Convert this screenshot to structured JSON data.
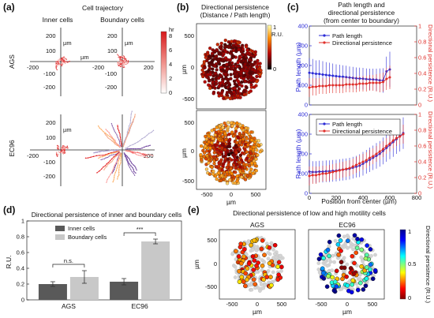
{
  "colors": {
    "blue": "#2b2bd6",
    "red": "#e0302b",
    "dark_bar": "#595959",
    "light_bar": "#c8c8c8"
  },
  "panels": {
    "a": "(a)",
    "b": "(b)",
    "c": "(c)",
    "d": "(d)",
    "e": "(e)"
  },
  "a": {
    "title": "Cell trajectory",
    "col_inner": "Inner cells",
    "col_boundary": "Boundary cells",
    "row_ags": "AGS",
    "row_ec96": "EC96",
    "unit": "µm",
    "ticks": [
      "200",
      "100",
      "-100",
      "-200",
      "-200",
      "200"
    ],
    "colorbar_unit": "hr",
    "colorbar_ticks": [
      "8",
      "6",
      "4",
      "2",
      "0"
    ]
  },
  "b": {
    "title_line1": "Directional persistence",
    "title_line2": "(Distance / Path length)",
    "colorbar_ticks": [
      "1",
      "0"
    ],
    "colorbar_unit": "R.U.",
    "ylabel": "µm",
    "xlabel": "µm",
    "yticks": [
      "500",
      "0",
      "-500"
    ],
    "xticks": [
      "-500",
      "0",
      "500"
    ]
  },
  "c": {
    "title_line1": "Path length and",
    "title_line2": "directional persistence",
    "title_line3": "(from center to boundary)",
    "ylabel_left": "Path length (µm)",
    "ylabel_right": "Directional persistence (R.U.)",
    "xlabel": "Position from center (µm)",
    "legend_path": "Path length",
    "legend_dir": "Directional persistence",
    "left_ticks": [
      "400",
      "300",
      "200",
      "100",
      "0"
    ],
    "right_ticks": [
      "1",
      "0.8",
      "0.6",
      "0.4",
      "0.2",
      "0"
    ],
    "xticks": [
      "0",
      "200",
      "400",
      "600",
      "800"
    ]
  },
  "d": {
    "title": "Directional persistence of inner and boundary cells",
    "ylabel": "R.U.",
    "legend_inner": "Inner cells",
    "legend_boundary": "Boundary cells",
    "sig_ns": "n.s.",
    "sig_star": "***",
    "yticks": [
      "1",
      "0.8",
      "0.6",
      "0.4",
      "0.2",
      "0"
    ]
  },
  "e": {
    "title": "Directional persistence of low and high motility cells",
    "sub_ags": "AGS",
    "sub_ec96": "EC96",
    "ylabel": "µm",
    "xlabel": "µm",
    "yticks": [
      "500",
      "0",
      "-500"
    ],
    "xticks": [
      "-500",
      "0",
      "500"
    ],
    "colorbar_label": "Directional persistence (R.U.)",
    "colorbar_ticks": [
      "1",
      "0.5",
      "0"
    ]
  },
  "chart_data": [
    {
      "type": "line",
      "panel": "c-top (AGS)",
      "xlabel": "Position from center (µm)",
      "x": [
        0,
        25,
        50,
        75,
        100,
        125,
        150,
        175,
        200,
        225,
        250,
        275,
        300,
        325,
        350,
        375,
        400,
        425,
        450,
        475,
        500,
        525,
        550,
        575,
        600
      ],
      "series": [
        {
          "name": "Path length",
          "axis": "left",
          "values": [
            163,
            161,
            158,
            157,
            154,
            152,
            150,
            148,
            146,
            144,
            143,
            141,
            139,
            137,
            135,
            134,
            133,
            131,
            130,
            129,
            128,
            125,
            124,
            170,
            180
          ],
          "errors": [
            75,
            72,
            68,
            70,
            68,
            65,
            64,
            62,
            60,
            60,
            58,
            58,
            56,
            56,
            55,
            55,
            55,
            54,
            54,
            55,
            56,
            60,
            62,
            75,
            90
          ]
        },
        {
          "name": "Directional persistence",
          "axis": "right",
          "values": [
            0.22,
            0.23,
            0.23,
            0.24,
            0.24,
            0.24,
            0.25,
            0.25,
            0.25,
            0.25,
            0.25,
            0.26,
            0.26,
            0.26,
            0.26,
            0.27,
            0.27,
            0.27,
            0.28,
            0.28,
            0.28,
            0.28,
            0.29,
            0.33,
            0.35
          ],
          "errors": [
            0.12,
            0.11,
            0.11,
            0.1,
            0.1,
            0.1,
            0.1,
            0.1,
            0.1,
            0.1,
            0.1,
            0.1,
            0.1,
            0.1,
            0.1,
            0.1,
            0.1,
            0.1,
            0.1,
            0.1,
            0.11,
            0.12,
            0.12,
            0.14,
            0.15
          ]
        }
      ],
      "ylim_left": [
        0,
        400
      ],
      "ylim_right": [
        0,
        1
      ],
      "xlim": [
        0,
        800
      ]
    },
    {
      "type": "line",
      "panel": "c-bottom (EC96)",
      "xlabel": "Position from center (µm)",
      "x": [
        0,
        25,
        50,
        75,
        100,
        125,
        150,
        175,
        200,
        225,
        250,
        275,
        300,
        325,
        350,
        375,
        400,
        425,
        450,
        475,
        500,
        525,
        550,
        575,
        600,
        625,
        650,
        675,
        700
      ],
      "series": [
        {
          "name": "Path length",
          "axis": "left",
          "values": [
            110,
            108,
            108,
            110,
            110,
            112,
            112,
            114,
            115,
            118,
            120,
            122,
            125,
            130,
            135,
            140,
            150,
            160,
            170,
            180,
            190,
            200,
            215,
            230,
            245,
            260,
            275,
            290,
            305
          ],
          "errors": [
            60,
            55,
            55,
            55,
            55,
            55,
            55,
            55,
            55,
            55,
            55,
            55,
            55,
            55,
            55,
            58,
            60,
            60,
            62,
            62,
            65,
            65,
            68,
            70,
            72,
            75,
            75,
            78,
            80
          ]
        },
        {
          "name": "Directional persistence",
          "axis": "right",
          "values": [
            0.22,
            0.23,
            0.23,
            0.24,
            0.25,
            0.25,
            0.26,
            0.27,
            0.28,
            0.29,
            0.3,
            0.31,
            0.32,
            0.34,
            0.36,
            0.38,
            0.4,
            0.42,
            0.45,
            0.47,
            0.5,
            0.53,
            0.56,
            0.6,
            0.63,
            0.67,
            0.7,
            0.72,
            0.75
          ],
          "errors": [
            0.12,
            0.11,
            0.11,
            0.1,
            0.1,
            0.1,
            0.1,
            0.1,
            0.1,
            0.1,
            0.1,
            0.1,
            0.1,
            0.1,
            0.1,
            0.1,
            0.1,
            0.1,
            0.1,
            0.1,
            0.1,
            0.1,
            0.1,
            0.1,
            0.1,
            0.1,
            0.1,
            0.1,
            0.12
          ]
        }
      ],
      "ylim_left": [
        0,
        400
      ],
      "ylim_right": [
        0,
        1
      ],
      "xlim": [
        0,
        800
      ]
    },
    {
      "type": "bar",
      "panel": "d",
      "title": "Directional persistence of inner and boundary cells",
      "ylabel": "R.U.",
      "categories": [
        "AGS",
        "EC96"
      ],
      "series": [
        {
          "name": "Inner cells",
          "values": [
            0.2,
            0.23
          ],
          "errors": [
            0.03,
            0.04
          ]
        },
        {
          "name": "Boundary cells",
          "values": [
            0.29,
            0.74
          ],
          "errors": [
            0.08,
            0.03
          ]
        }
      ],
      "ylim": [
        0,
        1
      ],
      "annotations": [
        {
          "category": "AGS",
          "text": "n.s."
        },
        {
          "category": "EC96",
          "text": "***"
        }
      ]
    }
  ]
}
